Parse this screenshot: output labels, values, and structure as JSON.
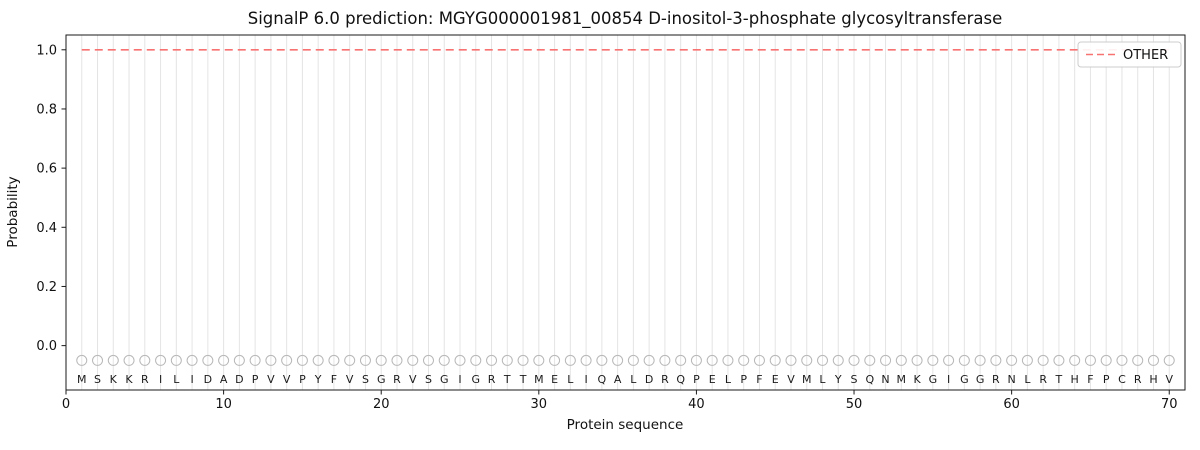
{
  "chart_data": {
    "type": "line",
    "title": "SignalP 6.0 prediction: MGYG000001981_00854 D-inositol-3-phosphate glycosyltransferase",
    "xlabel": "Protein sequence",
    "ylabel": "Probability",
    "xlim": [
      0,
      71
    ],
    "ylim": [
      -0.15,
      1.05
    ],
    "x_ticks": [
      0,
      10,
      20,
      30,
      40,
      50,
      60,
      70
    ],
    "y_ticks": [
      0.0,
      0.2,
      0.4,
      0.6,
      0.8,
      1.0
    ],
    "grid": "vertical-gridline-per-residue",
    "legend_position": "upper-right",
    "residues": [
      "M",
      "S",
      "K",
      "K",
      "R",
      "I",
      "L",
      "I",
      "D",
      "A",
      "D",
      "P",
      "V",
      "V",
      "P",
      "Y",
      "F",
      "V",
      "S",
      "G",
      "R",
      "V",
      "S",
      "G",
      "I",
      "G",
      "R",
      "T",
      "T",
      "M",
      "E",
      "L",
      "I",
      "Q",
      "A",
      "L",
      "D",
      "R",
      "Q",
      "P",
      "E",
      "L",
      "P",
      "F",
      "E",
      "V",
      "M",
      "L",
      "Y",
      "S",
      "Q",
      "N",
      "M",
      "K",
      "G",
      "I",
      "G",
      "G",
      "R",
      "N",
      "L",
      "R",
      "T",
      "H",
      "F",
      "P",
      "C",
      "R",
      "H",
      "V"
    ],
    "series": [
      {
        "name": "OTHER",
        "style": "dashed",
        "color": "#f87272",
        "x_start": 1,
        "values": [
          1.0,
          1.0,
          1.0,
          1.0,
          1.0,
          1.0,
          1.0,
          1.0,
          1.0,
          1.0,
          1.0,
          1.0,
          1.0,
          1.0,
          1.0,
          1.0,
          1.0,
          1.0,
          1.0,
          1.0,
          1.0,
          1.0,
          1.0,
          1.0,
          1.0,
          1.0,
          1.0,
          1.0,
          1.0,
          1.0,
          1.0,
          1.0,
          1.0,
          1.0,
          1.0,
          1.0,
          1.0,
          1.0,
          1.0,
          1.0,
          1.0,
          1.0,
          1.0,
          1.0,
          1.0,
          1.0,
          1.0,
          1.0,
          1.0,
          1.0,
          1.0,
          1.0,
          1.0,
          1.0,
          1.0,
          1.0,
          1.0,
          1.0,
          1.0,
          1.0,
          1.0,
          1.0,
          1.0,
          1.0,
          1.0,
          1.0,
          1.0,
          1.0,
          1.0,
          1.0
        ]
      }
    ],
    "colors": {
      "background": "#ffffff",
      "grid": "#e4e4e4",
      "marker": "#b8b8b8",
      "spine": "#1a1a1a",
      "text": "#111111",
      "legend_border": "#cccccc",
      "legend_fill": "#ffffff"
    }
  }
}
